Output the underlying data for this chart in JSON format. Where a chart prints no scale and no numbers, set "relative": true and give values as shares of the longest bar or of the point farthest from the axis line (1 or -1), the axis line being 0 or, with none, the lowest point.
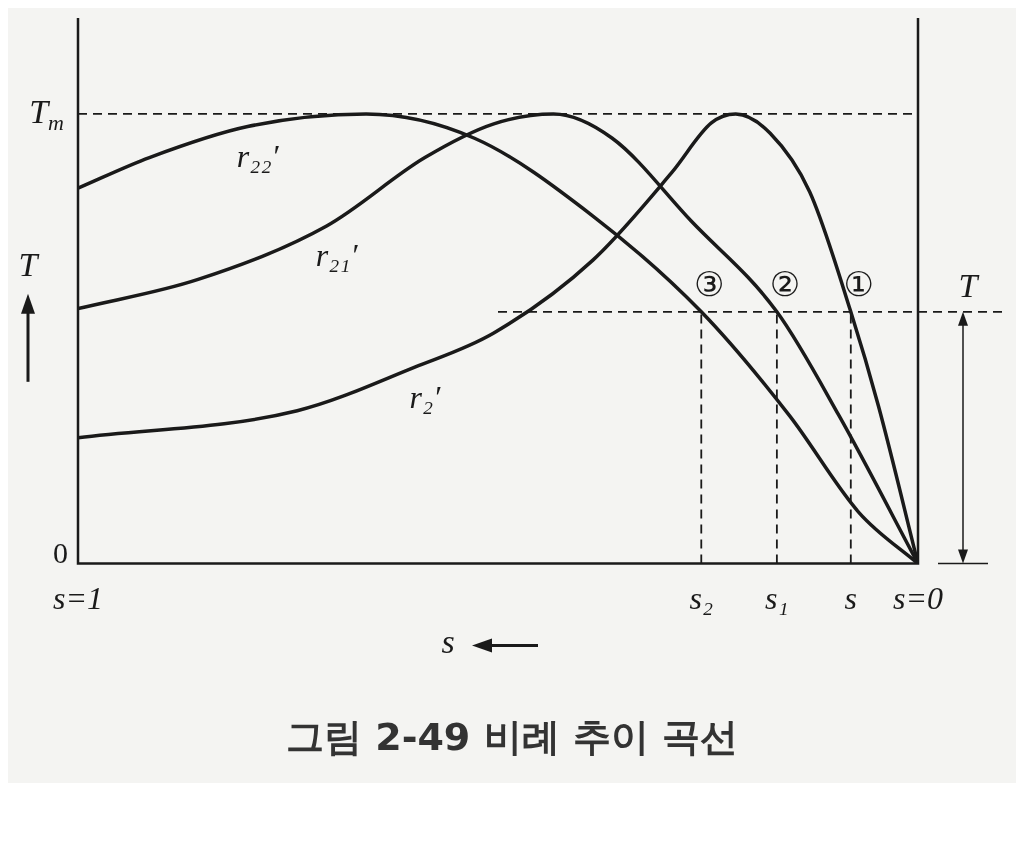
{
  "chart_data": {
    "type": "line",
    "title": "그림 2-49 비례 추이 곡선",
    "xlabel": "s",
    "ylabel": "T",
    "relative": true,
    "xlim": [
      1,
      0
    ],
    "xticks": [
      {
        "value": 1,
        "label": "s=1"
      },
      {
        "value": 0.258,
        "label": "s₂"
      },
      {
        "value": 0.168,
        "label": "s₁"
      },
      {
        "value": 0.08,
        "label": "s"
      },
      {
        "value": 0,
        "label": "s=0"
      }
    ],
    "series": [
      {
        "name": "r₂₂′",
        "color": "#1a1a1a",
        "x": [
          1,
          0.915,
          0.798,
          0.657,
          0.528,
          0.387,
          0.258,
          0.153,
          0.07,
          0
        ],
        "values": [
          0.835,
          0.903,
          0.972,
          1,
          0.946,
          0.773,
          0.56,
          0.329,
          0.113,
          0
        ]
      },
      {
        "name": "r₂₁′",
        "color": "#1a1a1a",
        "x": [
          1,
          0.857,
          0.704,
          0.587,
          0.505,
          0.434,
          0.364,
          0.27,
          0.168,
          0.094,
          0
        ],
        "values": [
          0.567,
          0.632,
          0.751,
          0.903,
          0.978,
          1,
          0.946,
          0.762,
          0.56,
          0.329,
          0
        ]
      },
      {
        "name": "r₂′",
        "color": "#1a1a1a",
        "x": [
          1,
          0.739,
          0.599,
          0.505,
          0.387,
          0.293,
          0.246,
          0.217,
          0.176,
          0.129,
          0.08,
          0.047,
          0
        ],
        "values": [
          0.28,
          0.34,
          0.437,
          0.513,
          0.675,
          0.87,
          0.98,
          1,
          0.957,
          0.827,
          0.56,
          0.35,
          0
        ]
      }
    ],
    "ref_lines": [
      {
        "axis": "y",
        "value": 1,
        "label": "T$_{m}$",
        "line_style": "dashed"
      },
      {
        "axis": "y",
        "value": 0.56,
        "label": "T",
        "line_style": "dashed"
      },
      {
        "axis": "x",
        "value": 0.258,
        "line_style": "dashed"
      },
      {
        "axis": "x",
        "value": 0.168,
        "line_style": "dashed"
      },
      {
        "axis": "x",
        "value": 0.08,
        "line_style": "dashed"
      }
    ],
    "annotations": [
      {
        "text": "③",
        "x": 0.258,
        "y": 0.56
      },
      {
        "text": "②",
        "x": 0.168,
        "y": 0.56
      },
      {
        "text": "①",
        "x": 0.08,
        "y": 0.56
      },
      "0"
    ],
    "grid": false,
    "legend": false,
    "marker": "none",
    "line_style": "solid"
  }
}
